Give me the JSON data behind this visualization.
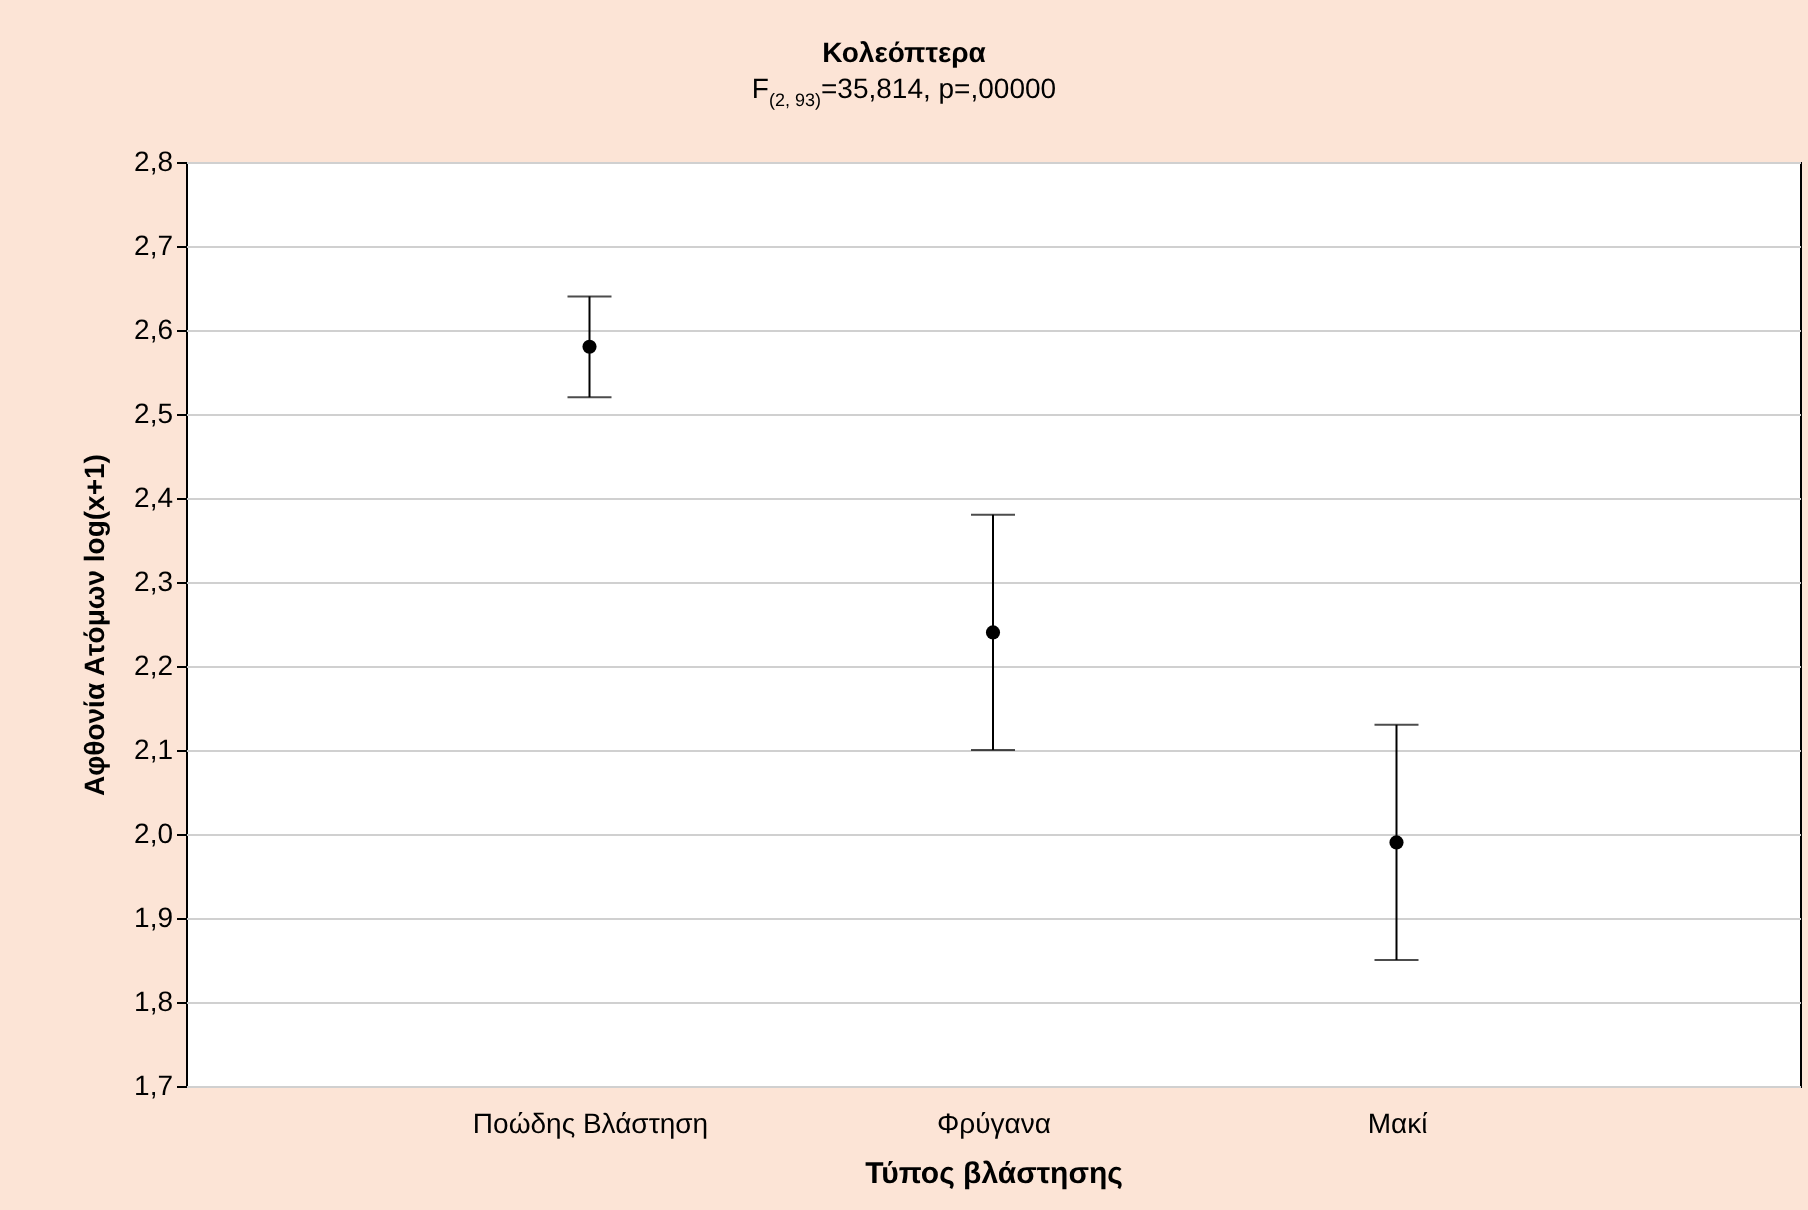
{
  "chart_data": {
    "type": "scatter",
    "title": "Κολεόπτερα",
    "subtitle": "F$_{(2, 93)}$=35,814, p=,00000",
    "xlabel": "Τύπος βλάστησης",
    "ylabel": "Αφθονία Ατόμων log(x+1)",
    "categories": [
      "Ποώδης Βλάστηση",
      "Φρύγανα",
      "Μακί"
    ],
    "series": [
      {
        "color": "#000000",
        "values": [
          2.58,
          2.24,
          1.99
        ],
        "errors": [
          0.06,
          0.14,
          0.14
        ]
      }
    ],
    "ylim": [
      1.7,
      2.8
    ],
    "yticks": [
      {
        "value": 1.7,
        "label": "1,7"
      },
      {
        "value": 1.8,
        "label": "1,8"
      },
      {
        "value": 1.9,
        "label": "1,9"
      },
      {
        "value": 2.0,
        "label": "2,0"
      },
      {
        "value": 2.1,
        "label": "2,1"
      },
      {
        "value": 2.2,
        "label": "2,2"
      },
      {
        "value": 2.3,
        "label": "2,3"
      },
      {
        "value": 2.4,
        "label": "2,4"
      },
      {
        "value": 2.5,
        "label": "2,5"
      },
      {
        "value": 2.6,
        "label": "2,6"
      },
      {
        "value": 2.7,
        "label": "2,7"
      },
      {
        "value": 2.8,
        "label": "2,8"
      }
    ],
    "grid": "y",
    "marker": "circle"
  }
}
